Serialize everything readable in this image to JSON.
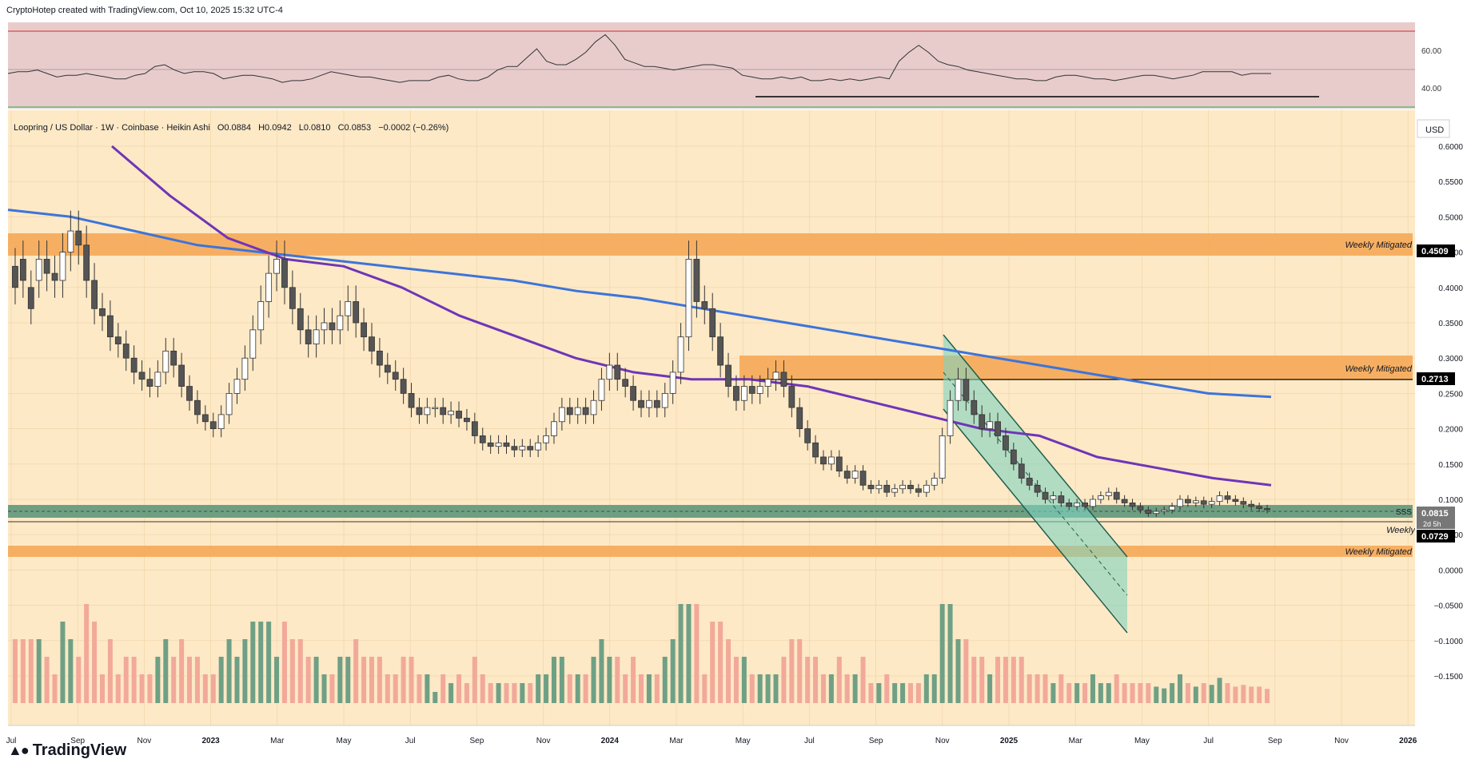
{
  "header": {
    "attribution": "CryptoHotep created with TradingView.com, Oct 10, 2025 15:32 UTC-4"
  },
  "legend": {
    "symbol": "Loopring / US Dollar · 1W · Coinbase · Heikin Ashi",
    "open": "O0.0884",
    "high": "H0.0942",
    "low": "L0.0810",
    "close": "C0.0853",
    "change": "−0.0002 (−0.26%)"
  },
  "footer": {
    "brand": "TradingView"
  },
  "colors": {
    "background": "#fde9c6",
    "rsi_panel": "#e8cccc",
    "zone_orange": "#f5a957",
    "zone_green": "#6f9f82",
    "channel": "#7fd4bf",
    "ma_blue": "#3d74d9",
    "ma_purple": "#6f35b8",
    "candle_up": "#ffffff",
    "candle_down": "#555555",
    "volume_up": "#6fa085",
    "volume_down": "#f2a99a"
  },
  "chart_data": {
    "type": "candlestick",
    "currency": "USD",
    "price_axis": {
      "ticks": [
        "0.6000",
        "0.5500",
        "0.5000",
        "0.4500",
        "0.4000",
        "0.3500",
        "0.3000",
        "0.2500",
        "0.2000",
        "0.1500",
        "0.1000",
        "0.0500",
        "0.0000",
        "−0.0500",
        "−0.1000",
        "−0.1500"
      ],
      "ylim": [
        -0.175,
        0.61
      ]
    },
    "rsi_axis": {
      "ticks": [
        "60.00",
        "40.00"
      ],
      "ylim": [
        29,
        72
      ],
      "upper_line": 70,
      "lower_line": 30,
      "mid_line": 50
    },
    "time_axis": [
      "Jul",
      "Sep",
      "Nov",
      "2023",
      "Mar",
      "May",
      "Jul",
      "Sep",
      "Nov",
      "2024",
      "Mar",
      "May",
      "Jul",
      "Sep",
      "Nov",
      "2025",
      "Mar",
      "May",
      "Jul",
      "Sep",
      "Nov",
      "2026"
    ],
    "price_labels": [
      {
        "value": "0.4509",
        "label": "Weekly Mitigated"
      },
      {
        "value": "0.2713",
        "label": "Weekly Mitigated"
      },
      {
        "value": "0.0815",
        "sub": "2d 5h",
        "label": "SSS"
      },
      {
        "value": "0.0729",
        "label": "Weekly"
      },
      {
        "label": "Weekly Mitigated"
      }
    ],
    "zones": [
      {
        "type": "supply",
        "from": 0.445,
        "to": 0.473
      },
      {
        "type": "supply",
        "from": 0.27,
        "to": 0.301
      },
      {
        "type": "demand",
        "from": 0.073,
        "to": 0.091
      },
      {
        "type": "supply",
        "from": 0.02,
        "to": 0.034
      }
    ],
    "candles": [
      [
        0.43,
        0.4
      ],
      [
        0.44,
        0.41
      ],
      [
        0.4,
        0.37
      ],
      [
        0.41,
        0.44
      ],
      [
        0.44,
        0.42
      ],
      [
        0.42,
        0.41
      ],
      [
        0.41,
        0.45
      ],
      [
        0.45,
        0.48
      ],
      [
        0.48,
        0.46
      ],
      [
        0.46,
        0.41
      ],
      [
        0.41,
        0.37
      ],
      [
        0.37,
        0.36
      ],
      [
        0.36,
        0.33
      ],
      [
        0.33,
        0.32
      ],
      [
        0.32,
        0.3
      ],
      [
        0.3,
        0.28
      ],
      [
        0.28,
        0.27
      ],
      [
        0.27,
        0.26
      ],
      [
        0.26,
        0.28
      ],
      [
        0.28,
        0.31
      ],
      [
        0.31,
        0.29
      ],
      [
        0.29,
        0.26
      ],
      [
        0.26,
        0.24
      ],
      [
        0.24,
        0.22
      ],
      [
        0.22,
        0.21
      ],
      [
        0.21,
        0.2
      ],
      [
        0.2,
        0.22
      ],
      [
        0.22,
        0.25
      ],
      [
        0.25,
        0.27
      ],
      [
        0.27,
        0.3
      ],
      [
        0.3,
        0.34
      ],
      [
        0.34,
        0.38
      ],
      [
        0.38,
        0.42
      ],
      [
        0.42,
        0.44
      ],
      [
        0.44,
        0.4
      ],
      [
        0.4,
        0.37
      ],
      [
        0.37,
        0.34
      ],
      [
        0.34,
        0.32
      ],
      [
        0.32,
        0.34
      ],
      [
        0.34,
        0.35
      ],
      [
        0.35,
        0.34
      ],
      [
        0.34,
        0.36
      ],
      [
        0.36,
        0.38
      ],
      [
        0.38,
        0.35
      ],
      [
        0.35,
        0.33
      ],
      [
        0.33,
        0.31
      ],
      [
        0.31,
        0.29
      ],
      [
        0.29,
        0.28
      ],
      [
        0.28,
        0.27
      ],
      [
        0.27,
        0.25
      ],
      [
        0.25,
        0.23
      ],
      [
        0.23,
        0.22
      ],
      [
        0.22,
        0.23
      ],
      [
        0.23,
        0.23
      ],
      [
        0.23,
        0.22
      ],
      [
        0.22,
        0.225
      ],
      [
        0.225,
        0.215
      ],
      [
        0.215,
        0.21
      ],
      [
        0.21,
        0.19
      ],
      [
        0.19,
        0.18
      ],
      [
        0.18,
        0.175
      ],
      [
        0.175,
        0.18
      ],
      [
        0.18,
        0.175
      ],
      [
        0.175,
        0.17
      ],
      [
        0.17,
        0.175
      ],
      [
        0.175,
        0.17
      ],
      [
        0.17,
        0.18
      ],
      [
        0.18,
        0.19
      ],
      [
        0.19,
        0.21
      ],
      [
        0.21,
        0.23
      ],
      [
        0.23,
        0.22
      ],
      [
        0.22,
        0.23
      ],
      [
        0.23,
        0.22
      ],
      [
        0.22,
        0.24
      ],
      [
        0.24,
        0.27
      ],
      [
        0.27,
        0.29
      ],
      [
        0.29,
        0.27
      ],
      [
        0.27,
        0.26
      ],
      [
        0.26,
        0.24
      ],
      [
        0.24,
        0.23
      ],
      [
        0.23,
        0.24
      ],
      [
        0.24,
        0.23
      ],
      [
        0.23,
        0.25
      ],
      [
        0.25,
        0.28
      ],
      [
        0.28,
        0.33
      ],
      [
        0.33,
        0.44
      ],
      [
        0.44,
        0.38
      ],
      [
        0.38,
        0.37
      ],
      [
        0.37,
        0.33
      ],
      [
        0.33,
        0.29
      ],
      [
        0.29,
        0.26
      ],
      [
        0.26,
        0.24
      ],
      [
        0.24,
        0.26
      ],
      [
        0.26,
        0.25
      ],
      [
        0.25,
        0.26
      ],
      [
        0.26,
        0.27
      ],
      [
        0.27,
        0.28
      ],
      [
        0.28,
        0.26
      ],
      [
        0.26,
        0.23
      ],
      [
        0.23,
        0.2
      ],
      [
        0.2,
        0.18
      ],
      [
        0.18,
        0.16
      ],
      [
        0.16,
        0.15
      ],
      [
        0.15,
        0.16
      ],
      [
        0.16,
        0.14
      ],
      [
        0.14,
        0.13
      ],
      [
        0.13,
        0.14
      ],
      [
        0.14,
        0.12
      ],
      [
        0.12,
        0.115
      ],
      [
        0.115,
        0.12
      ],
      [
        0.12,
        0.11
      ],
      [
        0.11,
        0.115
      ],
      [
        0.115,
        0.12
      ],
      [
        0.12,
        0.115
      ],
      [
        0.115,
        0.11
      ],
      [
        0.11,
        0.12
      ],
      [
        0.12,
        0.13
      ],
      [
        0.13,
        0.19
      ],
      [
        0.19,
        0.24
      ],
      [
        0.24,
        0.27
      ],
      [
        0.27,
        0.24
      ],
      [
        0.24,
        0.22
      ],
      [
        0.22,
        0.2
      ],
      [
        0.2,
        0.21
      ],
      [
        0.21,
        0.19
      ],
      [
        0.19,
        0.17
      ],
      [
        0.17,
        0.15
      ],
      [
        0.15,
        0.13
      ],
      [
        0.13,
        0.12
      ],
      [
        0.12,
        0.11
      ],
      [
        0.11,
        0.1
      ],
      [
        0.1,
        0.105
      ],
      [
        0.105,
        0.095
      ],
      [
        0.095,
        0.09
      ],
      [
        0.09,
        0.095
      ],
      [
        0.095,
        0.09
      ],
      [
        0.09,
        0.1
      ],
      [
        0.1,
        0.105
      ],
      [
        0.105,
        0.11
      ],
      [
        0.11,
        0.1
      ],
      [
        0.1,
        0.095
      ],
      [
        0.095,
        0.09
      ],
      [
        0.09,
        0.085
      ],
      [
        0.085,
        0.08
      ],
      [
        0.08,
        0.083
      ],
      [
        0.083,
        0.085
      ],
      [
        0.085,
        0.09
      ],
      [
        0.09,
        0.1
      ],
      [
        0.1,
        0.095
      ],
      [
        0.095,
        0.098
      ],
      [
        0.098,
        0.093
      ],
      [
        0.093,
        0.097
      ],
      [
        0.097,
        0.105
      ],
      [
        0.105,
        0.1
      ],
      [
        0.1,
        0.097
      ],
      [
        0.097,
        0.093
      ],
      [
        0.093,
        0.09
      ],
      [
        0.09,
        0.087
      ],
      [
        0.087,
        0.0853
      ]
    ],
    "series": [
      {
        "name": "blue MA",
        "values": [
          0.51,
          0.5,
          0.48,
          0.46,
          0.45,
          0.44,
          0.43,
          0.42,
          0.41,
          0.395,
          0.385,
          0.37,
          0.355,
          0.34,
          0.325,
          0.31,
          0.295,
          0.28,
          0.265,
          0.25,
          0.245
        ]
      },
      {
        "name": "purple MA",
        "values": [
          0.6,
          0.53,
          0.47,
          0.44,
          0.43,
          0.4,
          0.36,
          0.33,
          0.3,
          0.28,
          0.27,
          0.27,
          0.26,
          0.24,
          0.22,
          0.2,
          0.19,
          0.16,
          0.145,
          0.13,
          0.12
        ]
      }
    ],
    "rsi": [
      48,
      49,
      49,
      50,
      48,
      46,
      47,
      47,
      48,
      47,
      46,
      45,
      45,
      47,
      48,
      52,
      53,
      50,
      48,
      49,
      49,
      48,
      45,
      46,
      47,
      47,
      46,
      45,
      43,
      44,
      44,
      45,
      47,
      49,
      48,
      47,
      46,
      46,
      45,
      44,
      43,
      44,
      44,
      44,
      46,
      47,
      45,
      44,
      44,
      46,
      50,
      52,
      52,
      57,
      62,
      55,
      53,
      53,
      56,
      60,
      66,
      70,
      64,
      56,
      54,
      52,
      52,
      51,
      50,
      51,
      52,
      53,
      53,
      52,
      51,
      47,
      46,
      45,
      45,
      46,
      45,
      46,
      44,
      44,
      45,
      44,
      45,
      44,
      45,
      46,
      45,
      55,
      60,
      64,
      60,
      55,
      53,
      52,
      50,
      49,
      48,
      47,
      46,
      45,
      45,
      44,
      44,
      46,
      47,
      47,
      46,
      45,
      45,
      44,
      45,
      46,
      47,
      47,
      46,
      45,
      46,
      47,
      49,
      49,
      49,
      49,
      47,
      48,
      48,
      48
    ]
  }
}
